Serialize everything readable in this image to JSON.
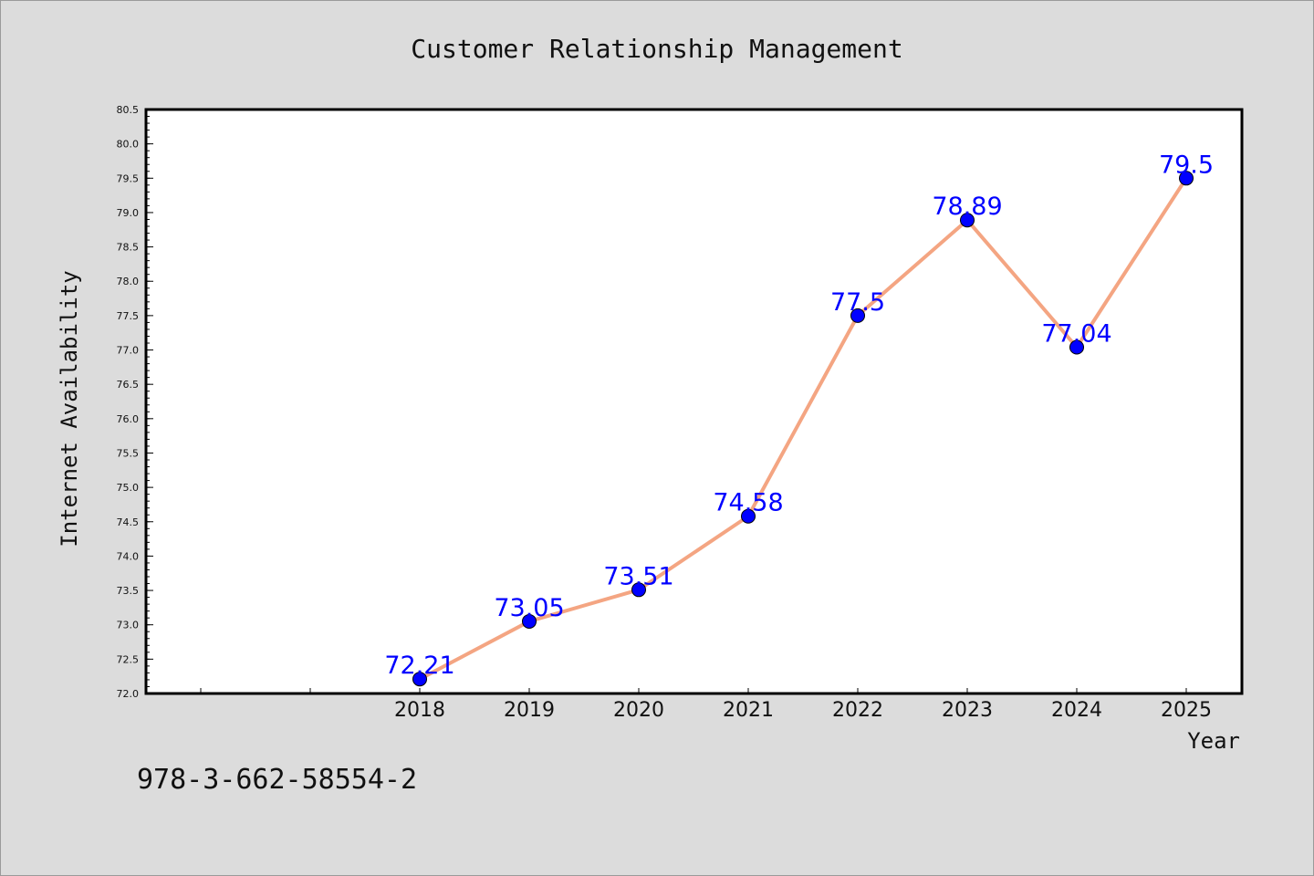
{
  "chart_data": {
    "type": "line",
    "title": "Customer Relationship Management",
    "xlabel": "Year",
    "ylabel": "Internet Availability",
    "categories": [
      "2018",
      "2019",
      "2020",
      "2021",
      "2022",
      "2023",
      "2024",
      "2025"
    ],
    "series": [
      {
        "values": [
          72.21,
          73.05,
          73.51,
          74.58,
          77.5,
          78.89,
          77.04,
          79.5
        ],
        "data_labels": [
          "72.21",
          "73.05",
          "73.51",
          "74.58",
          "77.5",
          "78.89",
          "77.04",
          "79.5"
        ],
        "line_color": "#f4a582",
        "marker_color": "#0000ff",
        "label_color": "#0000ff"
      }
    ],
    "ylim": [
      72.0,
      80.5
    ],
    "yticks": [
      "72.0",
      "72.5",
      "73.0",
      "73.5",
      "74.0",
      "74.5",
      "75.0",
      "75.5",
      "76.0",
      "76.5",
      "77.0",
      "77.5",
      "78.0",
      "78.5",
      "79.0",
      "79.5",
      "80.0",
      "80.5"
    ],
    "grid": false,
    "legend": "none"
  },
  "footer_text": "978-3-662-58554-2",
  "colors": {
    "background": "#dcdcdc",
    "plot_background": "#ffffff",
    "axis": "#000000"
  }
}
